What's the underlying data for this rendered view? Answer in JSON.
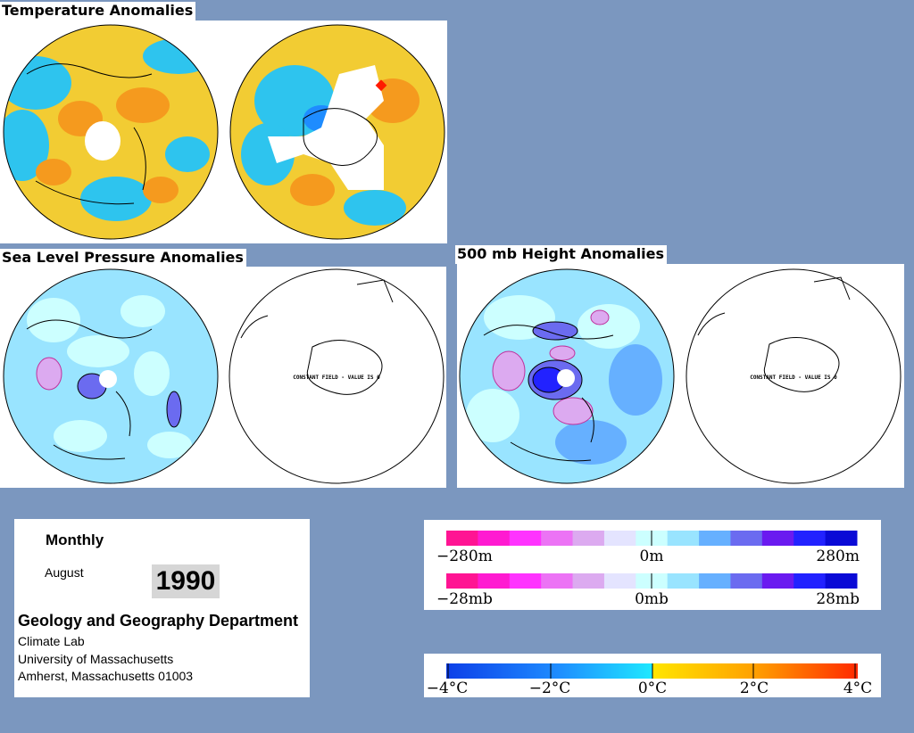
{
  "titles": {
    "temperature": "Temperature Anomalies",
    "slp": "Sea Level Pressure Anomalies",
    "height500": "500 mb Height Anomalies"
  },
  "map_note": "CONSTANT FIELD - VALUE IS 0",
  "info": {
    "period": "Monthly",
    "month": "August",
    "year": "1990",
    "department": "Geology and Geography Department",
    "lines": [
      "Climate Lab",
      "University of Massachusetts",
      "Amherst, Massachusetts 01003"
    ]
  },
  "legends": {
    "height": {
      "labels": [
        "−280m",
        "0m",
        "280m"
      ]
    },
    "pressure": {
      "labels": [
        "−28mb",
        "0mb",
        "28mb"
      ]
    },
    "temperature": {
      "labels": [
        "−4°C",
        "−2°C",
        "0°C",
        "2°C",
        "4°C"
      ]
    }
  },
  "colors": {
    "background": "#7b97bf",
    "anomaly_scale": [
      "#ff1493",
      "#ff1ad1",
      "#ff33ff",
      "#ec73f5",
      "#dcaaf0",
      "#e4e4ff",
      "#ccffff",
      "#99e4ff",
      "#66b0ff",
      "#6b6bf0",
      "#6a1af0",
      "#2222ff",
      "#0a0ad6"
    ],
    "temperature_scale": [
      "#0d3fe8",
      "#1e8cff",
      "#1ec8ff",
      "#1ee8ff",
      "#1ee8f0",
      "#ffe600",
      "#ffc800",
      "#ffa000",
      "#ff6a00",
      "#ff2a00"
    ]
  }
}
